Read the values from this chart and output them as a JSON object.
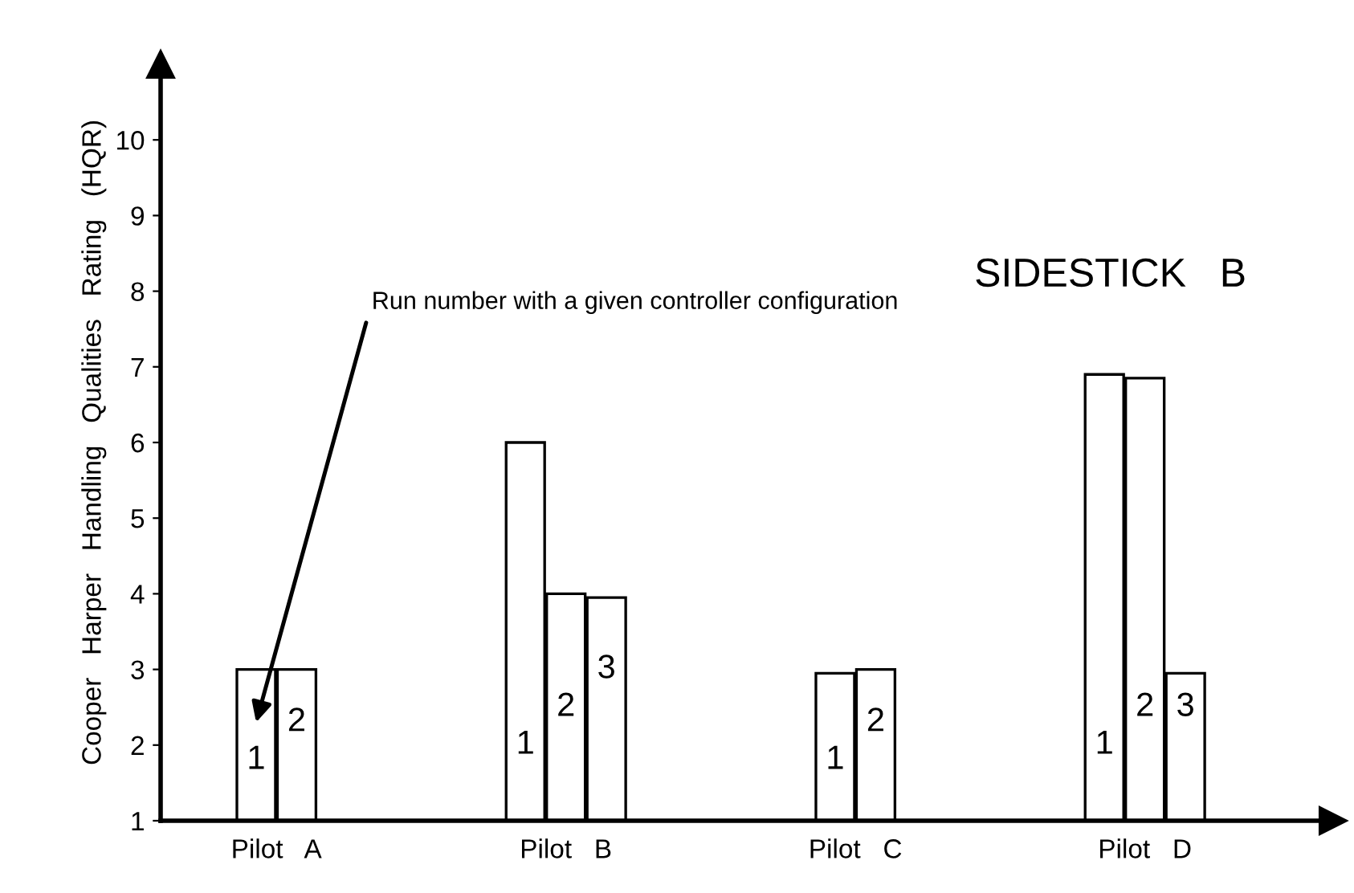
{
  "chart_data": {
    "type": "bar",
    "title": "SIDESTICK   B",
    "ylabel": "Cooper   Harper   Handling   Qualities   Rating   (HQR)",
    "categories": [
      "Pilot   A",
      "Pilot   B",
      "Pilot   C",
      "Pilot   D"
    ],
    "series": [
      {
        "name": "1",
        "color": "#ffffff",
        "values": [
          3,
          6,
          2.95,
          6.9
        ]
      },
      {
        "name": "2",
        "color": "#ffffff",
        "values": [
          3,
          4,
          3,
          6.85
        ]
      },
      {
        "name": "3",
        "color": "#ffffff",
        "values": [
          null,
          3.95,
          null,
          2.95
        ]
      }
    ],
    "ylim": [
      1,
      11
    ],
    "yticks": [
      1,
      2,
      3,
      4,
      5,
      6,
      7,
      8,
      9,
      10
    ],
    "annotations": [
      "Run number with a given controller configuration"
    ],
    "grid": false
  }
}
